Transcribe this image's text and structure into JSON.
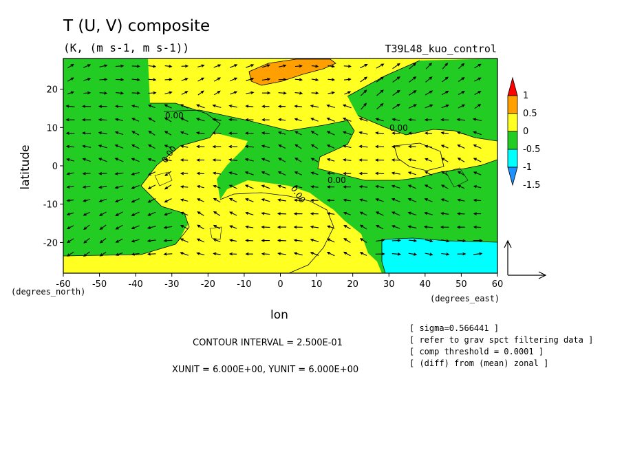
{
  "title": "T (U, V) composite",
  "units": "(K, (m s-1, m s-1))",
  "run_name": "T39L48_kuo_control",
  "colors": {
    "green": "#22cc22",
    "yellow": "#ffff22",
    "orange": "#ff9f00",
    "cyan": "#00ffff",
    "blue": "#1e90ff",
    "red": "#ff0000"
  },
  "chart_data": {
    "type": "heatmap",
    "subtype": "filled-contour with wind vectors",
    "xlabel": "lon",
    "ylabel": "latitude",
    "x_unit_label": "(degrees_east)",
    "y_unit_label": "(degrees_north)",
    "xlim": [
      -60,
      60
    ],
    "ylim": [
      -28,
      28
    ],
    "xticks": [
      -60,
      -50,
      -40,
      -30,
      -20,
      -10,
      0,
      10,
      20,
      30,
      40,
      50,
      60
    ],
    "yticks": [
      20,
      10,
      0,
      -10,
      -20
    ],
    "colorbar": {
      "levels": [
        "1",
        "0.5",
        "0",
        "-0.5",
        "-1",
        "-1.5"
      ],
      "fills": [
        "#ff0000",
        "#ff9f00",
        "#ffff22",
        "#22cc22",
        "#00ffff",
        "#1e90ff"
      ]
    },
    "contour_labels": [
      "0.00",
      "0.00",
      "0.00",
      "0.00",
      "0.00"
    ],
    "regions": [
      {
        "value_range": "0 to 0.5",
        "color": "#ffff22",
        "extent": "Northern band and central/southern Pacific-like sector"
      },
      {
        "value_range": "-0.5 to 0",
        "color": "#22cc22",
        "extent": "Western, northern-eastern and south-eastern sectors"
      },
      {
        "value_range": "0.5 to 1",
        "color": "#ff9f00",
        "lon": [
          -8,
          8
        ],
        "lat": [
          22,
          28
        ]
      },
      {
        "value_range": "-1 to -0.5",
        "color": "#00ffff",
        "lon": [
          30,
          60
        ],
        "lat": [
          -28,
          -19
        ]
      }
    ]
  },
  "footer": {
    "contour_interval": "CONTOUR INTERVAL = 2.500E-01",
    "units_line": "XUNIT = 6.000E+00, YUNIT = 6.000E+00"
  },
  "notes": [
    "[ sigma=0.566441 ]",
    "[ refer to grav spct filtering data ]",
    "[ comp threshold = 0.0001 ]",
    "[ (diff) from (mean) zonal ]"
  ]
}
